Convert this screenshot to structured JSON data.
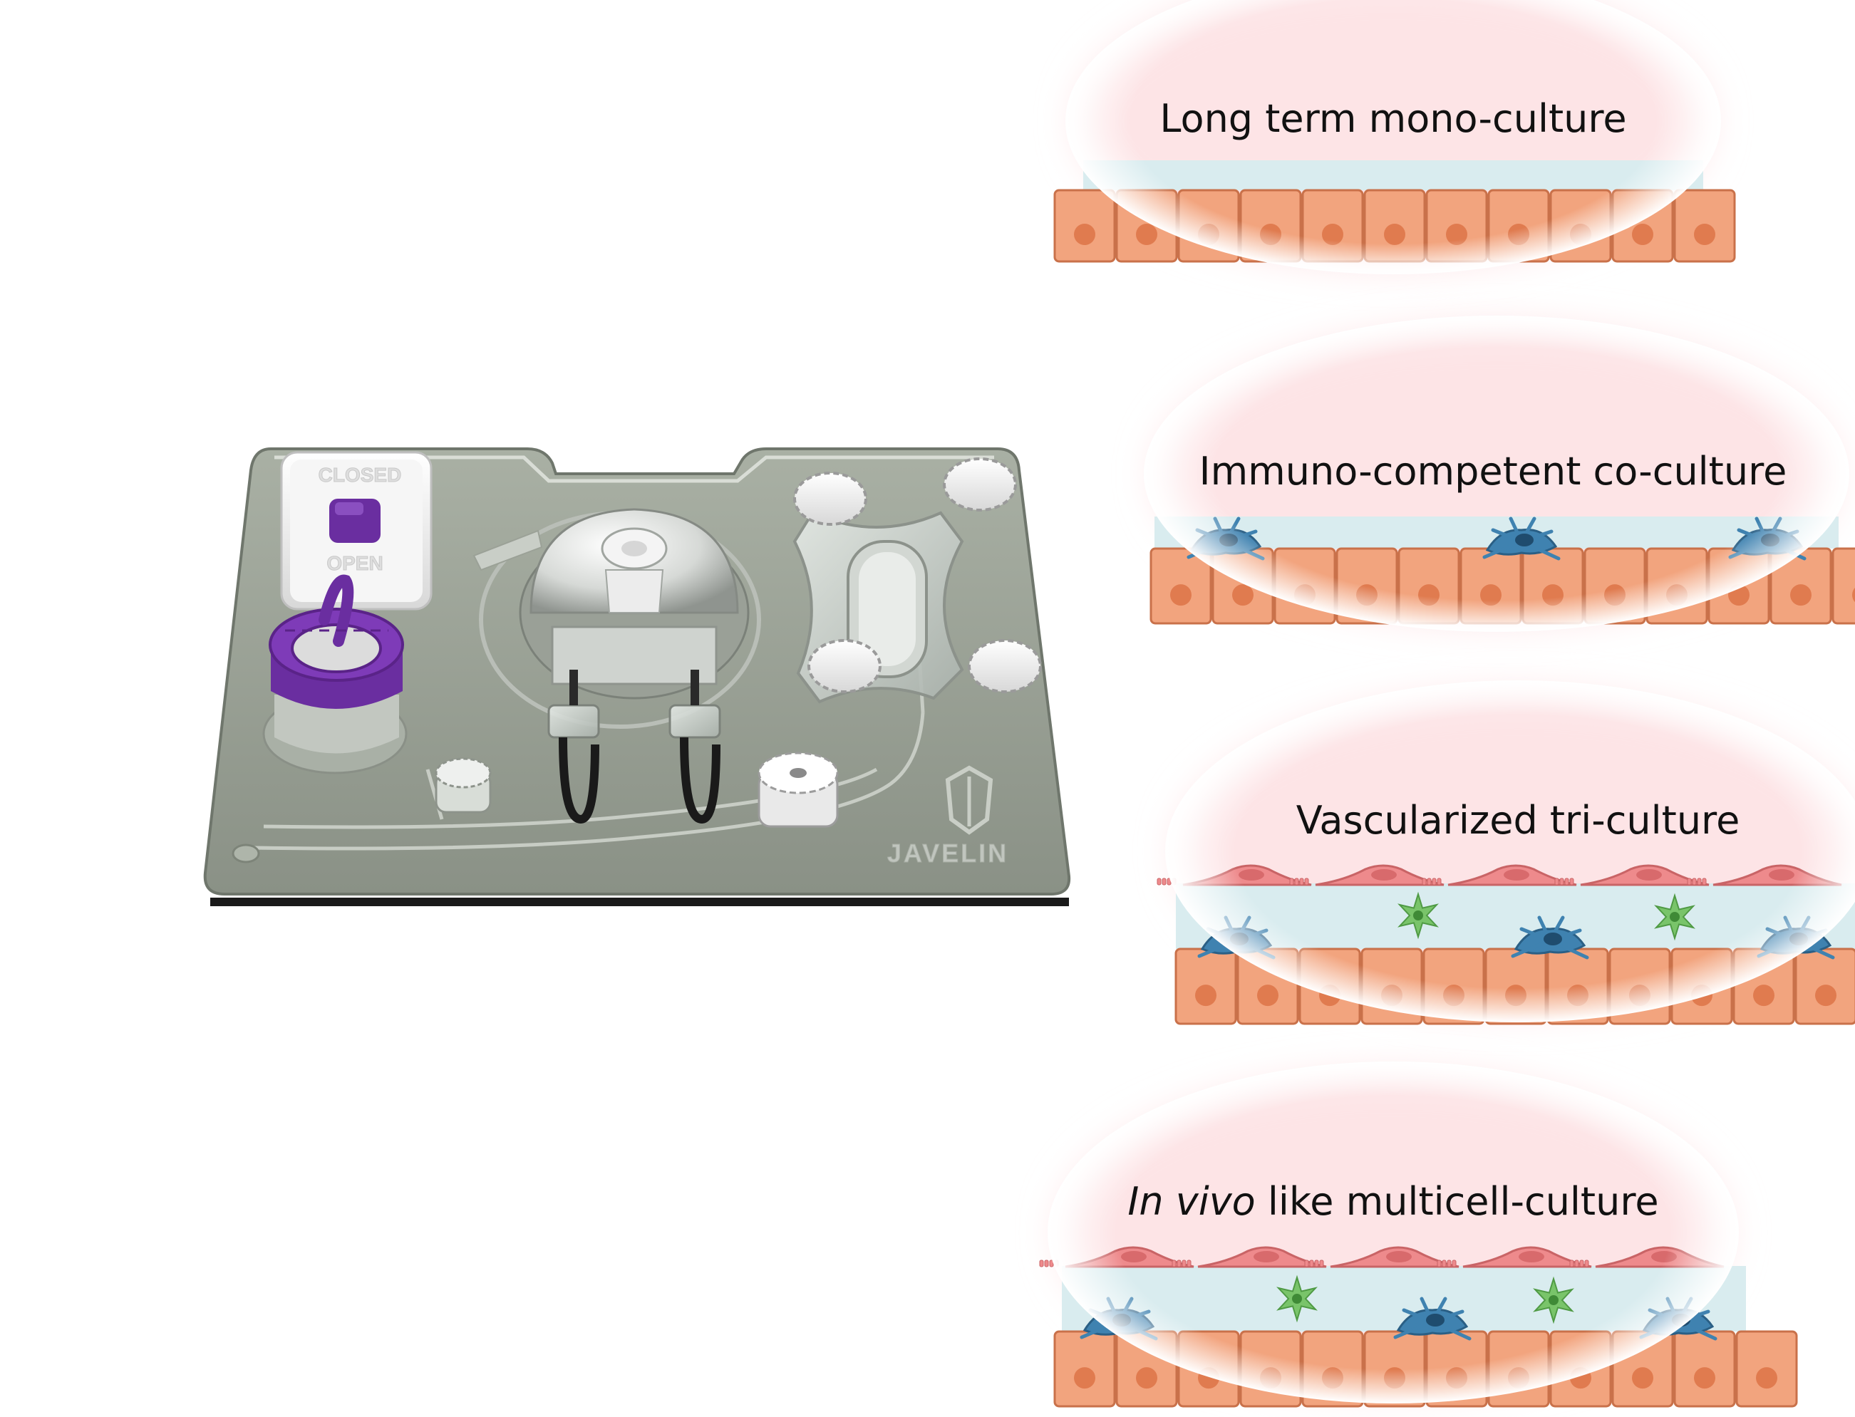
{
  "device": {
    "switch_closed_label": "CLOSED",
    "switch_open_label": "OPEN",
    "brand_label": "JAVELIN"
  },
  "panels": [
    {
      "id": "mono",
      "title": "Long term mono-culture"
    },
    {
      "id": "immuno",
      "title": "Immuno-competent co-culture"
    },
    {
      "id": "vascular",
      "title": "Vascularized tri-culture"
    },
    {
      "id": "invivo",
      "title_italic": "In vivo",
      "title_rest": " like multicell-culture"
    }
  ],
  "colors": {
    "ellipse_fill": "#fde4e6",
    "medium_layer": "#d9ecef",
    "epithelial_cell": "#f2a47e",
    "epithelial_border": "#c9714a",
    "nucleus": "#e07b4f",
    "immune_cell": "#3f82b0",
    "endothelial_cell": "#ee8a8c",
    "stromal_cell": "#79c46a",
    "chip_base": "#9aa296",
    "accent_purple": "#6a2ea0"
  }
}
